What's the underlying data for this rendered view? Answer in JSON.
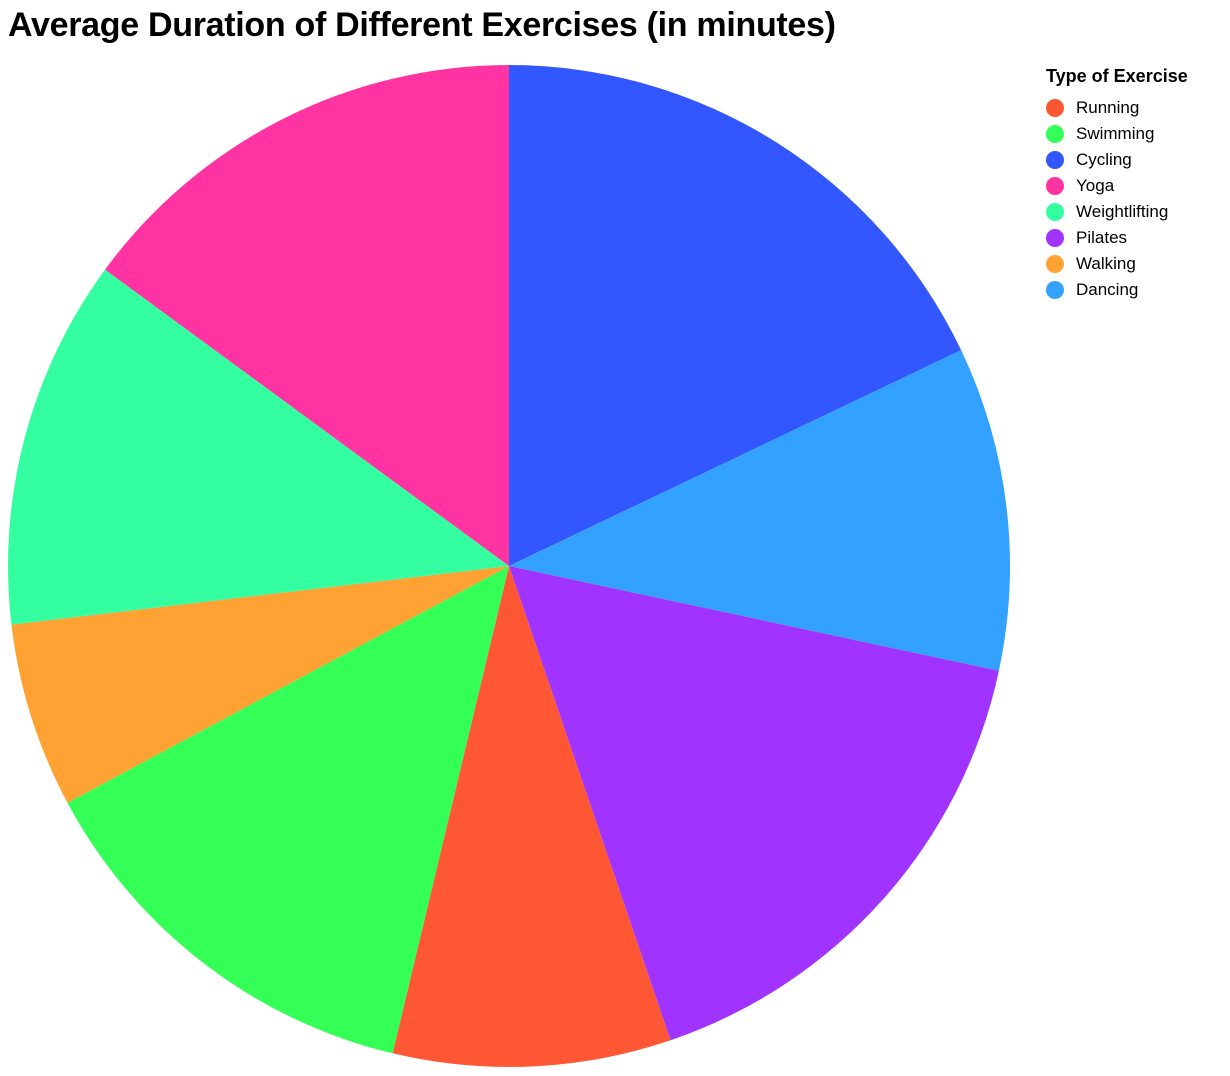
{
  "chart_data": {
    "type": "pie",
    "title": "Average Duration of Different Exercises (in minutes)",
    "legend_title": "Type of Exercise",
    "legend_position": "top-right",
    "categories": [
      "Running",
      "Swimming",
      "Cycling",
      "Yoga",
      "Weightlifting",
      "Pilates",
      "Walking",
      "Dancing"
    ],
    "colors": [
      "#ff5733",
      "#33ff57",
      "#3357ff",
      "#ff33a1",
      "#33ffa1",
      "#a133ff",
      "#ffa133",
      "#33a1ff"
    ],
    "values": [
      30,
      45,
      60,
      50,
      40,
      55,
      20,
      35
    ],
    "slice_order": [
      "Cycling",
      "Dancing",
      "Pilates",
      "Running",
      "Swimming",
      "Walking",
      "Weightlifting",
      "Yoga"
    ]
  }
}
